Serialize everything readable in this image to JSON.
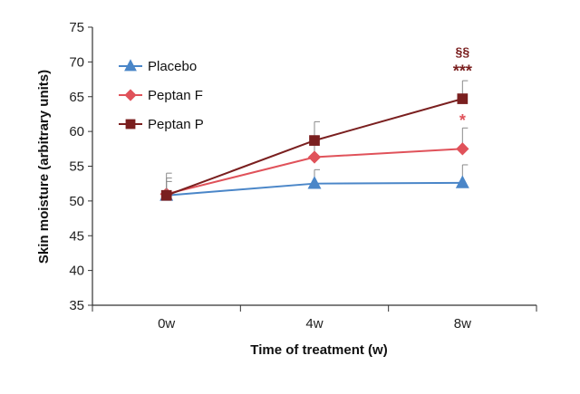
{
  "chart_data": {
    "type": "line",
    "title": "",
    "xlabel": "Time of treatment (w)",
    "ylabel": "Skin moisture (arbitrary units)",
    "categories": [
      "0w",
      "4w",
      "8w"
    ],
    "ylim": [
      35,
      75
    ],
    "yticks": [
      35,
      40,
      45,
      50,
      55,
      60,
      65,
      70,
      75
    ],
    "grid": false,
    "legend_position": "top-left",
    "series": [
      {
        "name": "Placebo",
        "color": "#4a86c8",
        "marker": "triangle",
        "values": [
          50.8,
          52.5,
          52.6
        ],
        "errors": [
          2.5,
          2.0,
          2.6
        ]
      },
      {
        "name": "Peptan F",
        "color": "#e0525a",
        "marker": "diamond",
        "values": [
          51.0,
          56.3,
          57.5
        ],
        "errors": [
          3.0,
          3.0,
          3.0
        ]
      },
      {
        "name": "Peptan P",
        "color": "#7a1f1f",
        "marker": "square",
        "values": [
          50.8,
          58.7,
          64.7
        ],
        "errors": [
          2.0,
          2.7,
          2.6
        ]
      }
    ],
    "annotations": [
      {
        "text": "§§",
        "category": "8w",
        "series": "Peptan P",
        "color": "#7a1f1f"
      },
      {
        "text": "***",
        "category": "8w",
        "series": "Peptan P",
        "color": "#7a1f1f"
      },
      {
        "text": "*",
        "category": "8w",
        "series": "Peptan F",
        "color": "#e0525a"
      }
    ]
  }
}
